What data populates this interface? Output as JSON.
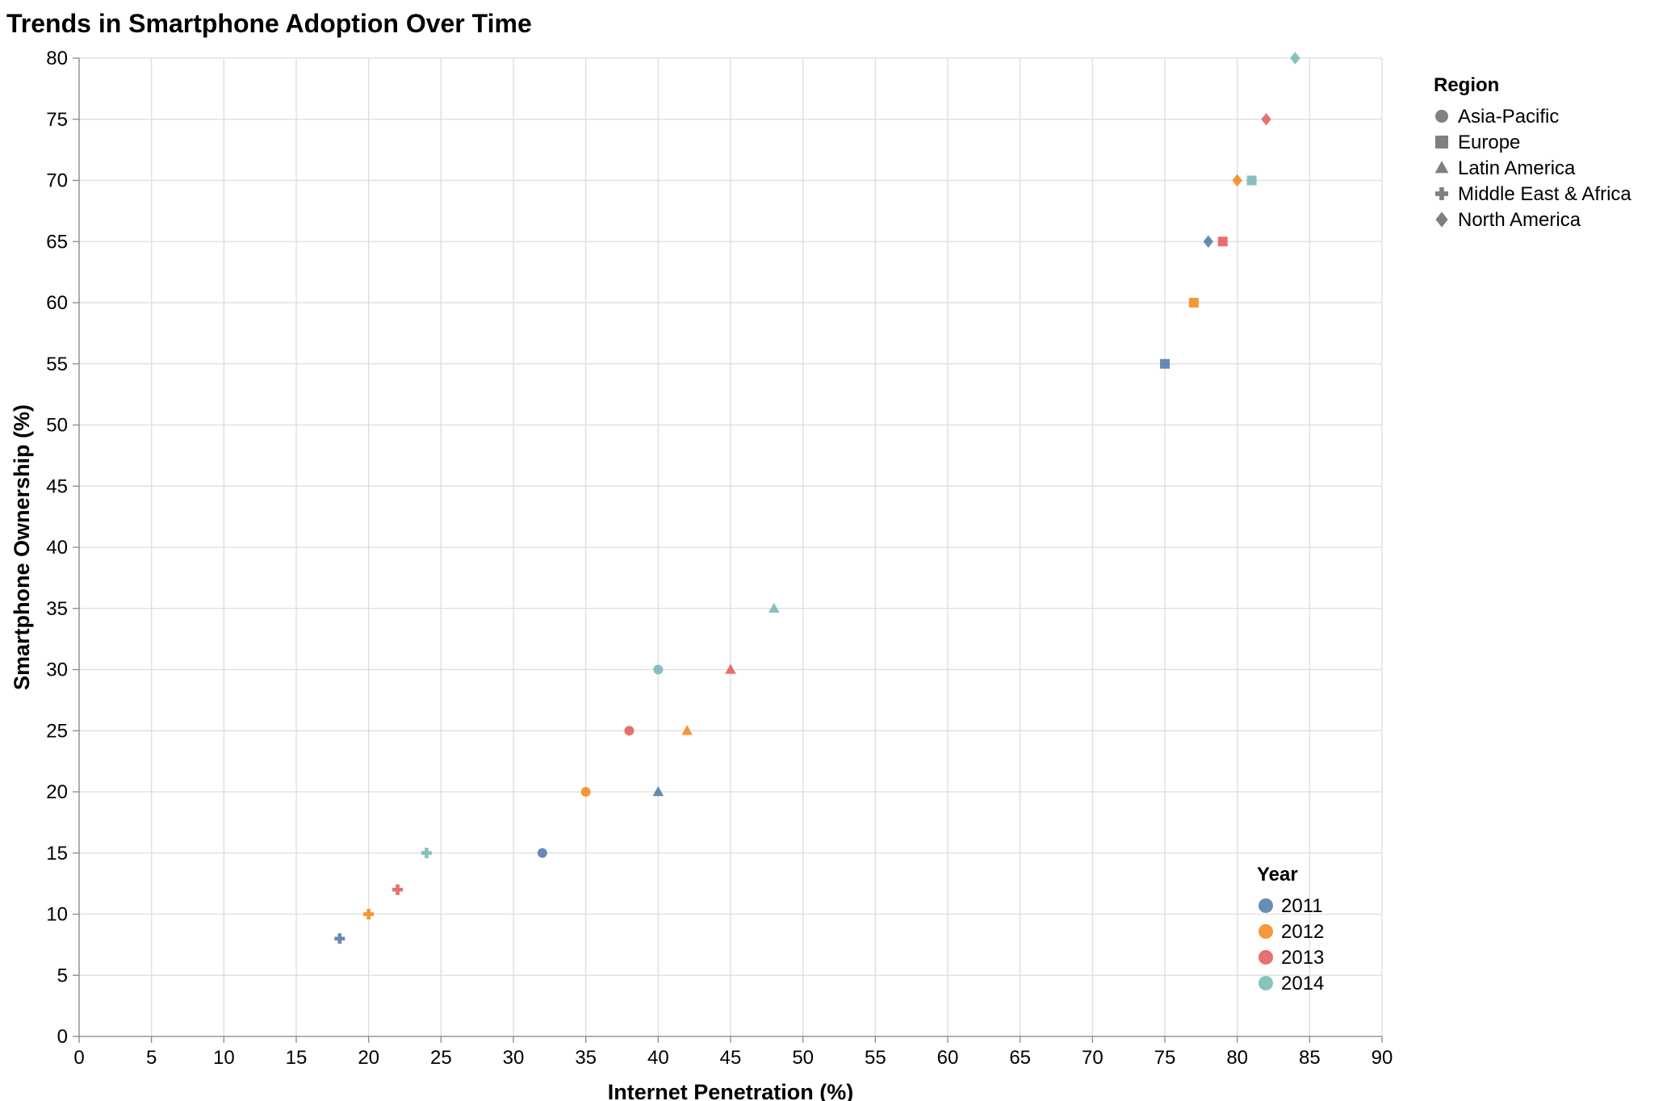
{
  "chart_data": {
    "type": "scatter",
    "title": "Trends in Smartphone Adoption Over Time",
    "xlabel": "Internet Penetration (%)",
    "ylabel": "Smartphone Ownership (%)",
    "xlim": [
      0,
      90
    ],
    "ylim": [
      0,
      80
    ],
    "x_ticks": [
      0,
      5,
      10,
      15,
      20,
      25,
      30,
      35,
      40,
      45,
      50,
      55,
      60,
      65,
      70,
      75,
      80,
      85,
      90
    ],
    "y_ticks": [
      0,
      5,
      10,
      15,
      20,
      25,
      30,
      35,
      40,
      45,
      50,
      55,
      60,
      65,
      70,
      75,
      80
    ],
    "grid": true,
    "legend_shape": {
      "title": "Region",
      "placement": "top-right",
      "entries": [
        {
          "label": "Asia-Pacific",
          "shape": "circle"
        },
        {
          "label": "Europe",
          "shape": "square"
        },
        {
          "label": "Latin America",
          "shape": "triangle"
        },
        {
          "label": "Middle East & Africa",
          "shape": "cross"
        },
        {
          "label": "North America",
          "shape": "diamond"
        }
      ]
    },
    "legend_color": {
      "title": "Year",
      "placement": "bottom-right",
      "entries": [
        {
          "label": "2011",
          "color": "#4c78a8"
        },
        {
          "label": "2012",
          "color": "#f58518"
        },
        {
          "label": "2013",
          "color": "#e45756"
        },
        {
          "label": "2014",
          "color": "#72b7b2"
        }
      ]
    },
    "points": [
      {
        "region": "Asia-Pacific",
        "year": "2011",
        "x": 32,
        "y": 15
      },
      {
        "region": "Asia-Pacific",
        "year": "2012",
        "x": 35,
        "y": 20
      },
      {
        "region": "Asia-Pacific",
        "year": "2013",
        "x": 38,
        "y": 25
      },
      {
        "region": "Asia-Pacific",
        "year": "2014",
        "x": 40,
        "y": 30
      },
      {
        "region": "Europe",
        "year": "2011",
        "x": 75,
        "y": 55
      },
      {
        "region": "Europe",
        "year": "2012",
        "x": 77,
        "y": 60
      },
      {
        "region": "Europe",
        "year": "2013",
        "x": 79,
        "y": 65
      },
      {
        "region": "Europe",
        "year": "2014",
        "x": 81,
        "y": 70
      },
      {
        "region": "Latin America",
        "year": "2011",
        "x": 40,
        "y": 20
      },
      {
        "region": "Latin America",
        "year": "2012",
        "x": 42,
        "y": 25
      },
      {
        "region": "Latin America",
        "year": "2013",
        "x": 45,
        "y": 30
      },
      {
        "region": "Latin America",
        "year": "2014",
        "x": 48,
        "y": 35
      },
      {
        "region": "Middle East & Africa",
        "year": "2011",
        "x": 18,
        "y": 8
      },
      {
        "region": "Middle East & Africa",
        "year": "2012",
        "x": 20,
        "y": 10
      },
      {
        "region": "Middle East & Africa",
        "year": "2013",
        "x": 22,
        "y": 12
      },
      {
        "region": "Middle East & Africa",
        "year": "2014",
        "x": 24,
        "y": 15
      },
      {
        "region": "North America",
        "year": "2011",
        "x": 78,
        "y": 65
      },
      {
        "region": "North America",
        "year": "2012",
        "x": 80,
        "y": 70
      },
      {
        "region": "North America",
        "year": "2013",
        "x": 82,
        "y": 75
      },
      {
        "region": "North America",
        "year": "2014",
        "x": 84,
        "y": 80
      }
    ]
  }
}
